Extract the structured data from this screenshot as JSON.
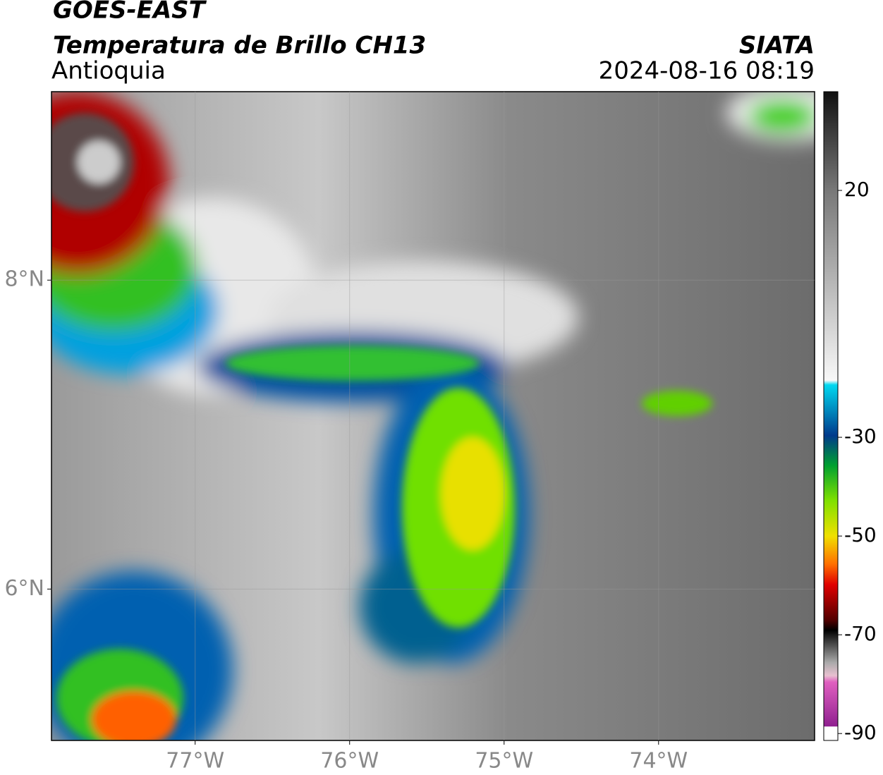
{
  "header": {
    "title": "GOES-EAST",
    "subtitle": "Temperatura de Brillo CH13",
    "region": "Antioquia",
    "source": "SIATA",
    "datetime": "2024-08-16 08:19"
  },
  "map": {
    "xlim": [
      -77.93,
      -72.99
    ],
    "ylim": [
      5.02,
      9.22
    ],
    "xticks": [
      {
        "value": -77,
        "label": "77°W"
      },
      {
        "value": -76,
        "label": "76°W"
      },
      {
        "value": -75,
        "label": "75°W"
      },
      {
        "value": -74,
        "label": "74°W"
      }
    ],
    "yticks": [
      {
        "value": 6,
        "label": "6°N"
      },
      {
        "value": 8,
        "label": "8°N"
      }
    ],
    "grid": true
  },
  "colorbar": {
    "lim": [
      -91.4,
      40
    ],
    "ticks": [
      -90,
      -70,
      -50,
      -30,
      20
    ]
  }
}
